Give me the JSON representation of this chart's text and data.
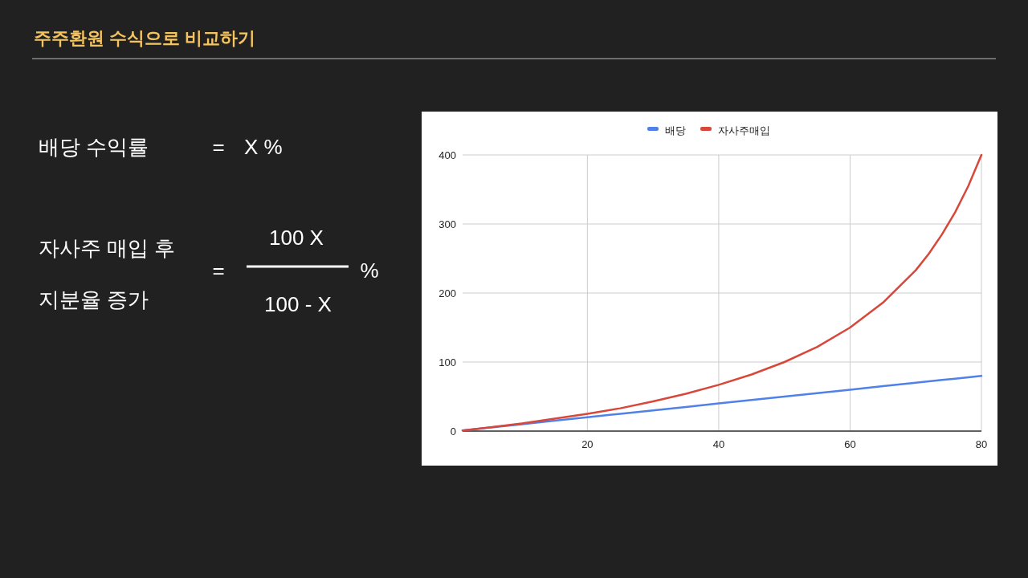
{
  "chart_data": {
    "type": "line",
    "title": "주주환원 수식으로 비교하기",
    "annotations": [
      "배당 수익률",
      "=",
      "X %",
      "자사주 매입 후",
      "지분율 증가",
      "=",
      "100 X",
      "100 - X",
      "%"
    ],
    "x": [
      1,
      5,
      10,
      15,
      20,
      25,
      30,
      35,
      40,
      45,
      50,
      55,
      60,
      65,
      70,
      72,
      74,
      76,
      78,
      80
    ],
    "series": [
      {
        "name": "배당",
        "color": "#4f81e8",
        "values": [
          1,
          5,
          10,
          15,
          20,
          25,
          30,
          35,
          40,
          45,
          50,
          55,
          60,
          65,
          70,
          72,
          74,
          76,
          78,
          80
        ]
      },
      {
        "name": "자사주매입",
        "color": "#d7473a",
        "values": [
          1,
          5.3,
          11,
          18,
          25,
          33,
          43,
          54,
          67,
          82,
          100,
          122,
          150,
          186,
          233,
          257,
          285,
          317,
          355,
          400
        ]
      }
    ],
    "xlim": [
      1,
      80
    ],
    "xticks": [
      20,
      40,
      60,
      80
    ],
    "ylim": [
      0,
      400
    ],
    "yticks": [
      0,
      100,
      200,
      300,
      400
    ],
    "grid": true,
    "legend": "top",
    "marker": "none",
    "line_style": "solid"
  }
}
